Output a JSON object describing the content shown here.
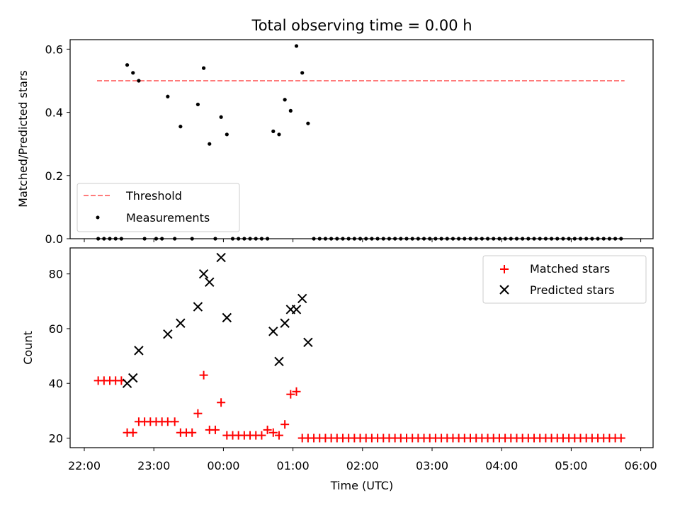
{
  "title": "Total observing time = 0.00 h",
  "xlabel": "Time (UTC)",
  "x_ticks": [
    "22:00",
    "23:00",
    "00:00",
    "01:00",
    "02:00",
    "03:00",
    "04:00",
    "05:00",
    "06:00"
  ],
  "colors": {
    "threshold": "#ff7b7b",
    "measurements": "#000000",
    "matched": "#ff0000",
    "predicted": "#000000"
  },
  "chart_data": [
    {
      "type": "scatter",
      "ylabel": "Matched/Predicted stars",
      "xlim": [
        "22:00",
        "06:00"
      ],
      "ylim": [
        0,
        0.63
      ],
      "y_ticks": [
        "0.0",
        "0.2",
        "0.4",
        "0.6"
      ],
      "legend": {
        "position": "lower-left",
        "entries": [
          "Threshold",
          "Measurements"
        ]
      },
      "threshold": {
        "name": "Threshold",
        "y": 0.5,
        "x_range": [
          "22:11",
          "05:46"
        ],
        "style": "dashed"
      },
      "series": [
        {
          "name": "Measurements",
          "x": [
            "22:12",
            "22:17",
            "22:22",
            "22:27",
            "22:32",
            "22:37",
            "22:42",
            "22:47",
            "22:52",
            "23:02",
            "23:07",
            "23:12",
            "23:18",
            "23:23",
            "23:33",
            "23:38",
            "23:43",
            "23:48",
            "23:53",
            "23:58",
            "00:03",
            "00:08",
            "00:13",
            "00:18",
            "00:23",
            "00:28",
            "00:33",
            "00:38",
            "00:43",
            "00:48",
            "00:53",
            "00:58",
            "01:03",
            "01:08",
            "01:13",
            "01:18",
            "01:23",
            "01:28",
            "01:33",
            "01:38",
            "01:43",
            "01:48",
            "01:53",
            "01:58",
            "02:03",
            "02:08",
            "02:13",
            "02:18",
            "02:23",
            "02:28",
            "02:33",
            "02:38",
            "02:43",
            "02:48",
            "02:53",
            "02:58",
            "03:03",
            "03:08",
            "03:13",
            "03:18",
            "03:23",
            "03:28",
            "03:33",
            "03:38",
            "03:43",
            "03:48",
            "03:53",
            "03:58",
            "04:03",
            "04:08",
            "04:13",
            "04:18",
            "04:23",
            "04:28",
            "04:33",
            "04:38",
            "04:43",
            "04:48",
            "04:53",
            "04:58",
            "05:03",
            "05:08",
            "05:13",
            "05:18",
            "05:23",
            "05:28",
            "05:33",
            "05:38",
            "05:43"
          ],
          "y": [
            0.0,
            0.0,
            0.0,
            0.0,
            0.0,
            0.55,
            0.525,
            0.5,
            0.0,
            0.0,
            0.0,
            0.45,
            0.0,
            0.355,
            0.0,
            0.425,
            0.54,
            0.3,
            0.0,
            0.385,
            0.33,
            0.0,
            0.0,
            0.0,
            0.0,
            0.0,
            0.0,
            0.0,
            0.34,
            0.33,
            0.44,
            0.405,
            0.61,
            0.525,
            0.365,
            0.0,
            0.0,
            0.0,
            0.0,
            0.0,
            0.0,
            0.0,
            0.0,
            0.0,
            0.0,
            0.0,
            0.0,
            0.0,
            0.0,
            0.0,
            0.0,
            0.0,
            0.0,
            0.0,
            0.0,
            0.0,
            0.0,
            0.0,
            0.0,
            0.0,
            0.0,
            0.0,
            0.0,
            0.0,
            0.0,
            0.0,
            0.0,
            0.0,
            0.0,
            0.0,
            0.0,
            0.0,
            0.0,
            0.0,
            0.0,
            0.0,
            0.0,
            0.0,
            0.0,
            0.0,
            0.0,
            0.0,
            0.0,
            0.0,
            0.0,
            0.0,
            0.0,
            0.0,
            0.0
          ]
        }
      ]
    },
    {
      "type": "scatter",
      "ylabel": "Count",
      "xlabel": "Time (UTC)",
      "xlim": [
        "22:00",
        "06:00"
      ],
      "ylim": [
        16.5,
        89.5
      ],
      "y_ticks": [
        "20",
        "40",
        "60",
        "80"
      ],
      "legend": {
        "position": "upper-right",
        "entries": [
          "Matched stars",
          "Predicted stars"
        ]
      },
      "series": [
        {
          "name": "Matched stars",
          "marker": "+",
          "x": [
            "22:12",
            "22:17",
            "22:22",
            "22:27",
            "22:32",
            "22:37",
            "22:42",
            "22:47",
            "22:52",
            "22:57",
            "23:02",
            "23:07",
            "23:12",
            "23:18",
            "23:23",
            "23:28",
            "23:33",
            "23:38",
            "23:43",
            "23:48",
            "23:53",
            "23:58",
            "00:03",
            "00:08",
            "00:13",
            "00:18",
            "00:23",
            "00:28",
            "00:33",
            "00:38",
            "00:43",
            "00:48",
            "00:53",
            "00:58",
            "01:03",
            "01:08",
            "01:13",
            "01:18",
            "01:23",
            "01:28",
            "01:33",
            "01:38",
            "01:43",
            "01:48",
            "01:53",
            "01:58",
            "02:03",
            "02:08",
            "02:13",
            "02:18",
            "02:23",
            "02:28",
            "02:33",
            "02:38",
            "02:43",
            "02:48",
            "02:53",
            "02:58",
            "03:03",
            "03:08",
            "03:13",
            "03:18",
            "03:23",
            "03:28",
            "03:33",
            "03:38",
            "03:43",
            "03:48",
            "03:53",
            "03:58",
            "04:03",
            "04:08",
            "04:13",
            "04:18",
            "04:23",
            "04:28",
            "04:33",
            "04:38",
            "04:43",
            "04:48",
            "04:53",
            "04:58",
            "05:03",
            "05:08",
            "05:13",
            "05:18",
            "05:23",
            "05:28",
            "05:33",
            "05:38",
            "05:43"
          ],
          "y": [
            41,
            41,
            41,
            41,
            41,
            22,
            22,
            26,
            26,
            26,
            26,
            26,
            26,
            26,
            22,
            22,
            22,
            29,
            43,
            23,
            23,
            33,
            21,
            21,
            21,
            21,
            21,
            21,
            21,
            23,
            22,
            21,
            25,
            36,
            37,
            20,
            20,
            20,
            20,
            20,
            20,
            20,
            20,
            20,
            20,
            20,
            20,
            20,
            20,
            20,
            20,
            20,
            20,
            20,
            20,
            20,
            20,
            20,
            20,
            20,
            20,
            20,
            20,
            20,
            20,
            20,
            20,
            20,
            20,
            20,
            20,
            20,
            20,
            20,
            20,
            20,
            20,
            20,
            20,
            20,
            20,
            20,
            20,
            20,
            20,
            20,
            20,
            20,
            20,
            20,
            20
          ]
        },
        {
          "name": "Predicted stars",
          "marker": "x",
          "x": [
            "22:37",
            "22:42",
            "22:47",
            "23:12",
            "23:23",
            "23:38",
            "23:43",
            "23:48",
            "23:58",
            "00:03",
            "00:58",
            "01:03",
            "00:48",
            "00:53",
            "00:43",
            "01:08",
            "01:13"
          ],
          "y": [
            40,
            42,
            52,
            58,
            62,
            68,
            80,
            77,
            86,
            64,
            67,
            67,
            48,
            62,
            59,
            71,
            55
          ]
        }
      ]
    }
  ]
}
